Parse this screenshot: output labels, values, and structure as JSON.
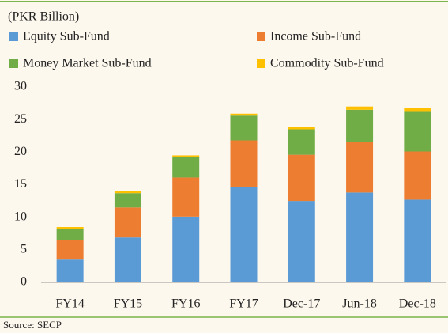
{
  "chart_data": {
    "type": "stacked_bar",
    "ylabel": "(PKR Billion)",
    "source": "Source: SECP",
    "categories": [
      "FY14",
      "FY15",
      "FY16",
      "FY17",
      "Dec-17",
      "Jun-18",
      "Dec-18"
    ],
    "series": [
      {
        "name": "Equity Sub-Fund",
        "color": "#5b9bd5",
        "values": [
          3.5,
          6.9,
          10.1,
          14.7,
          12.5,
          13.8,
          12.7
        ]
      },
      {
        "name": "Income Sub-Fund",
        "color": "#ed7d31",
        "values": [
          3.0,
          4.6,
          6.0,
          7.1,
          7.1,
          7.7,
          7.4
        ]
      },
      {
        "name": "Money Market Sub-Fund",
        "color": "#70ad47",
        "values": [
          1.7,
          2.2,
          3.1,
          3.8,
          3.9,
          5.0,
          6.2
        ]
      },
      {
        "name": "Commodity Sub-Fund",
        "color": "#ffc000",
        "values": [
          0.3,
          0.3,
          0.3,
          0.3,
          0.4,
          0.5,
          0.5
        ]
      }
    ],
    "ylim": [
      0,
      30
    ],
    "yticks": [
      0,
      5,
      10,
      15,
      20,
      25,
      30
    ],
    "legend": "top-left"
  }
}
